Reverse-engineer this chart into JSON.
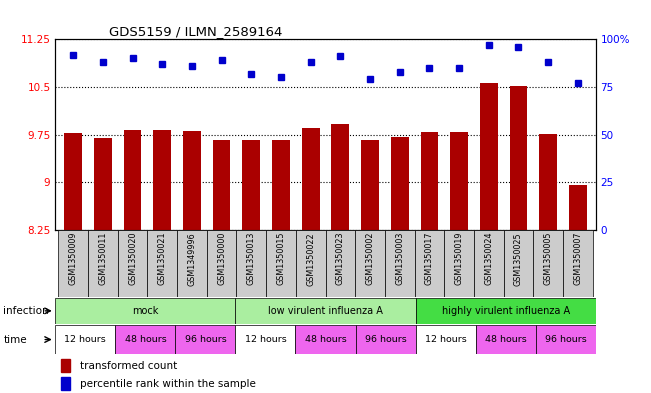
{
  "title": "GDS5159 / ILMN_2589164",
  "samples": [
    "GSM1350009",
    "GSM1350011",
    "GSM1350020",
    "GSM1350021",
    "GSM1349996",
    "GSM1350000",
    "GSM1350013",
    "GSM1350015",
    "GSM1350022",
    "GSM1350023",
    "GSM1350002",
    "GSM1350003",
    "GSM1350017",
    "GSM1350019",
    "GSM1350024",
    "GSM1350025",
    "GSM1350005",
    "GSM1350007"
  ],
  "bar_values": [
    9.78,
    9.7,
    9.82,
    9.82,
    9.8,
    9.66,
    9.66,
    9.67,
    9.86,
    9.92,
    9.67,
    9.72,
    9.79,
    9.79,
    10.56,
    10.52,
    9.76,
    8.96
  ],
  "dot_values": [
    92,
    88,
    90,
    87,
    86,
    89,
    82,
    80,
    88,
    91,
    79,
    83,
    85,
    85,
    97,
    96,
    88,
    77
  ],
  "ylim_left": [
    8.25,
    11.25
  ],
  "ylim_right": [
    0,
    100
  ],
  "yticks_left": [
    8.25,
    9.0,
    9.75,
    10.5,
    11.25
  ],
  "ytick_labels_left": [
    "8.25",
    "9",
    "9.75",
    "10.5",
    "11.25"
  ],
  "yticks_right": [
    0,
    25,
    50,
    75,
    100
  ],
  "ytick_labels_right": [
    "0",
    "25",
    "50",
    "75",
    "100%"
  ],
  "bar_color": "#AA0000",
  "dot_color": "#0000CC",
  "bar_baseline": 8.25,
  "infection_groups": [
    {
      "label": "mock",
      "start": 0,
      "end": 6,
      "color": "#AAEEA0"
    },
    {
      "label": "low virulent influenza A",
      "start": 6,
      "end": 12,
      "color": "#AAEEA0"
    },
    {
      "label": "highly virulent influenza A",
      "start": 12,
      "end": 18,
      "color": "#44DD44"
    }
  ],
  "time_groups": [
    {
      "label": "12 hours",
      "start": 0,
      "end": 2,
      "color": "#FFFFFF"
    },
    {
      "label": "48 hours",
      "start": 2,
      "end": 4,
      "color": "#EE66EE"
    },
    {
      "label": "96 hours",
      "start": 4,
      "end": 6,
      "color": "#EE66EE"
    },
    {
      "label": "12 hours",
      "start": 6,
      "end": 8,
      "color": "#FFFFFF"
    },
    {
      "label": "48 hours",
      "start": 8,
      "end": 10,
      "color": "#EE66EE"
    },
    {
      "label": "96 hours",
      "start": 10,
      "end": 12,
      "color": "#EE66EE"
    },
    {
      "label": "12 hours",
      "start": 12,
      "end": 14,
      "color": "#FFFFFF"
    },
    {
      "label": "48 hours",
      "start": 14,
      "end": 16,
      "color": "#EE66EE"
    },
    {
      "label": "96 hours",
      "start": 16,
      "end": 18,
      "color": "#EE66EE"
    }
  ],
  "legend_bar_label": "transformed count",
  "legend_dot_label": "percentile rank within the sample",
  "infection_label": "infection",
  "time_label": "time",
  "sample_bg_color": "#CCCCCC",
  "fig_width": 6.51,
  "fig_height": 3.93,
  "dpi": 100
}
